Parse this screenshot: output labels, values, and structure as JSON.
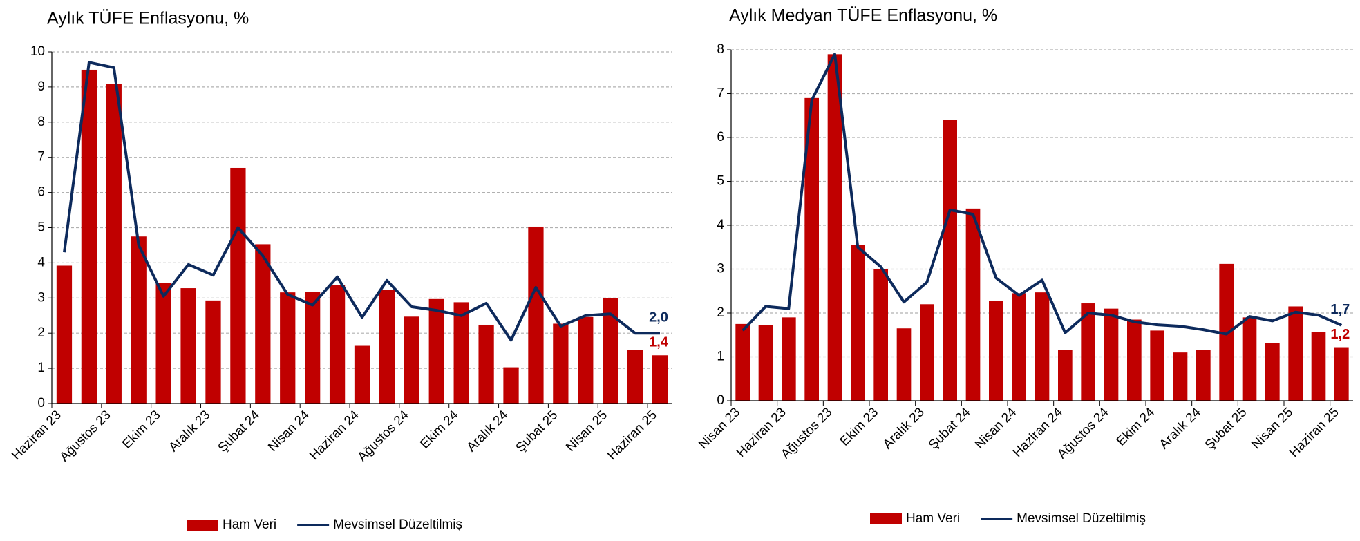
{
  "chart_data": [
    {
      "type": "combo",
      "title": "Aylık TÜFE Enflasyonu, %",
      "categories": [
        "Haziran 23",
        null,
        "Ağustos 23",
        null,
        "Ekim 23",
        null,
        "Aralık 23",
        null,
        "Şubat 24",
        null,
        "Nisan 24",
        null,
        "Haziran 24",
        null,
        "Ağustos 24",
        null,
        "Ekim 24",
        null,
        "Aralık 24",
        null,
        "Şubat 25",
        null,
        "Nisan 25",
        null,
        "Haziran 25"
      ],
      "series": [
        {
          "name": "Ham Veri",
          "type": "bar",
          "color": "#c00000",
          "values": [
            3.92,
            9.49,
            9.09,
            4.75,
            3.43,
            3.28,
            2.93,
            6.7,
            4.53,
            3.16,
            3.18,
            3.37,
            1.64,
            3.23,
            2.47,
            2.97,
            2.88,
            2.24,
            1.03,
            5.03,
            2.27,
            2.46,
            3.0,
            1.53,
            1.37
          ],
          "value_labels": [
            null,
            null,
            null,
            null,
            null,
            null,
            null,
            null,
            null,
            null,
            null,
            null,
            null,
            null,
            null,
            null,
            null,
            null,
            null,
            null,
            null,
            null,
            null,
            null,
            "1,4"
          ]
        },
        {
          "name": "Mevsimsel Düzeltilmiş",
          "type": "line",
          "color": "#0d2a5c",
          "values": [
            4.3,
            9.7,
            9.55,
            4.5,
            3.05,
            3.95,
            3.65,
            5.0,
            4.2,
            3.1,
            2.8,
            3.6,
            2.45,
            3.5,
            2.75,
            2.65,
            2.5,
            2.85,
            1.8,
            3.3,
            2.2,
            2.5,
            2.55,
            2.0,
            2.0
          ],
          "value_labels": [
            null,
            null,
            null,
            null,
            null,
            null,
            null,
            null,
            null,
            null,
            null,
            null,
            null,
            null,
            null,
            null,
            null,
            null,
            null,
            null,
            null,
            null,
            null,
            null,
            "2,0"
          ]
        }
      ],
      "ylim": [
        0,
        10
      ],
      "yticks": [
        0,
        1,
        2,
        3,
        4,
        5,
        6,
        7,
        8,
        9,
        10
      ],
      "grid": true,
      "legend": "bottom"
    },
    {
      "type": "combo",
      "title": "Aylık Medyan TÜFE Enflasyonu, %",
      "categories": [
        "Nisan 23",
        null,
        "Haziran 23",
        null,
        "Ağustos 23",
        null,
        "Ekim 23",
        null,
        "Aralık 23",
        null,
        "Şubat 24",
        null,
        "Nisan 24",
        null,
        "Haziran 24",
        null,
        "Ağustos 24",
        null,
        "Ekim 24",
        null,
        "Aralık 24",
        null,
        "Şubat 25",
        null,
        "Nisan 25",
        null,
        "Haziran 25"
      ],
      "series": [
        {
          "name": "Ham Veri",
          "type": "bar",
          "color": "#c00000",
          "values": [
            1.75,
            1.72,
            1.9,
            6.9,
            7.9,
            3.55,
            3.0,
            1.65,
            2.2,
            6.4,
            4.38,
            2.27,
            2.45,
            2.47,
            1.15,
            2.22,
            2.1,
            1.85,
            1.6,
            1.1,
            1.15,
            3.12,
            1.9,
            1.32,
            2.15,
            1.57,
            1.22
          ],
          "value_labels": [
            null,
            null,
            null,
            null,
            null,
            null,
            null,
            null,
            null,
            null,
            null,
            null,
            null,
            null,
            null,
            null,
            null,
            null,
            null,
            null,
            null,
            null,
            null,
            null,
            null,
            null,
            "1,2"
          ]
        },
        {
          "name": "Mevsimsel Düzeltilmiş",
          "type": "line",
          "color": "#0d2a5c",
          "values": [
            1.6,
            2.15,
            2.1,
            6.85,
            7.9,
            3.5,
            3.05,
            2.25,
            2.7,
            4.35,
            4.25,
            2.8,
            2.4,
            2.75,
            1.55,
            2.0,
            1.95,
            1.8,
            1.73,
            1.7,
            1.62,
            1.52,
            1.92,
            1.82,
            2.02,
            1.95,
            1.72
          ],
          "value_labels": [
            null,
            null,
            null,
            null,
            null,
            null,
            null,
            null,
            null,
            null,
            null,
            null,
            null,
            null,
            null,
            null,
            null,
            null,
            null,
            null,
            null,
            null,
            null,
            null,
            null,
            null,
            "1,7"
          ]
        }
      ],
      "ylim": [
        0,
        8
      ],
      "yticks": [
        0,
        1,
        2,
        3,
        4,
        5,
        6,
        7,
        8
      ],
      "grid": true,
      "legend": "bottom"
    }
  ]
}
